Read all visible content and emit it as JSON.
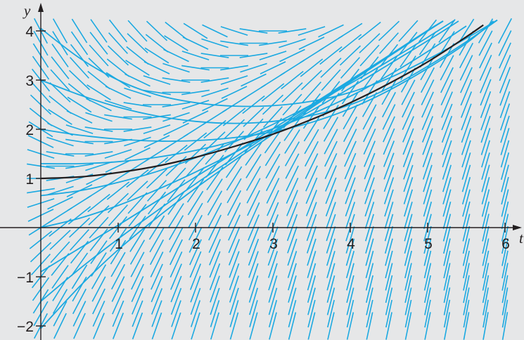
{
  "chart_data": {
    "type": "line",
    "title": "",
    "xlabel": "t",
    "ylabel": "y",
    "xlim": [
      -0.5,
      6.2
    ],
    "ylim": [
      -2.2,
      4.3
    ],
    "x_ticks": [
      1,
      2,
      3,
      4,
      5,
      6
    ],
    "y_ticks": [
      -2,
      -1,
      1,
      2,
      3,
      4
    ],
    "x_tick_labels": [
      "1",
      "2",
      "3",
      "4",
      "5",
      "6"
    ],
    "y_tick_labels": [
      "−2",
      "−1",
      "1",
      "2",
      "3",
      "4"
    ],
    "grid": false,
    "legend": "none",
    "background_color": "#e6e7e8",
    "direction_field": {
      "slope_function": "t - y + 1",
      "segment_color": "#1ba9e1",
      "t_values": [
        0,
        0.25,
        0.5,
        0.75,
        1.0,
        1.25,
        1.5,
        1.75,
        2.0,
        2.25,
        2.5,
        2.75,
        3.0,
        3.25,
        3.5,
        3.75,
        4.0,
        4.25,
        4.5,
        4.75,
        5.0,
        5.25,
        5.5,
        5.75,
        6.0
      ],
      "y_values": [
        -2.0,
        -1.75,
        -1.5,
        -1.25,
        -1.0,
        -0.75,
        -0.5,
        -0.25,
        0,
        0.25,
        0.5,
        0.75,
        1.0,
        1.25,
        1.5,
        1.75,
        2.0,
        2.25,
        2.5,
        2.75,
        3.0,
        3.25,
        3.5,
        3.75,
        4.0
      ]
    },
    "series": [
      {
        "role": "solution",
        "color": "#1ba9e1",
        "points": [
          [
            0,
            4.05
          ],
          [
            0.5,
            3.45
          ],
          [
            1,
            3.0
          ],
          [
            1.5,
            2.7
          ],
          [
            2,
            2.54
          ],
          [
            2.5,
            2.47
          ],
          [
            3,
            2.48
          ],
          [
            3.5,
            2.57
          ],
          [
            4,
            2.75
          ],
          [
            4.5,
            3.04
          ],
          [
            5,
            3.42
          ],
          [
            5.5,
            3.85
          ],
          [
            5.9,
            4.22
          ]
        ]
      },
      {
        "role": "solution",
        "color": "#1ba9e1",
        "points": [
          [
            0,
            3.0
          ],
          [
            0.5,
            2.7
          ],
          [
            1,
            2.45
          ],
          [
            1.5,
            2.27
          ],
          [
            2,
            2.16
          ],
          [
            2.5,
            2.12
          ],
          [
            3,
            2.16
          ],
          [
            3.5,
            2.28
          ],
          [
            4,
            2.5
          ],
          [
            4.5,
            2.84
          ],
          [
            5,
            3.28
          ],
          [
            5.5,
            3.78
          ],
          [
            5.9,
            4.22
          ]
        ]
      },
      {
        "role": "solution",
        "color": "#1ba9e1",
        "points": [
          [
            0,
            2.0
          ],
          [
            0.5,
            1.88
          ],
          [
            1,
            1.8
          ],
          [
            1.5,
            1.76
          ],
          [
            2,
            1.77
          ],
          [
            2.5,
            1.83
          ],
          [
            3,
            1.95
          ],
          [
            3.5,
            2.14
          ],
          [
            4,
            2.42
          ],
          [
            4.5,
            2.79
          ],
          [
            5,
            3.24
          ],
          [
            5.5,
            3.75
          ],
          [
            5.85,
            4.2
          ]
        ]
      },
      {
        "role": "solution",
        "color": "#1ba9e1",
        "points": [
          [
            0,
            1.3
          ],
          [
            0.5,
            1.3
          ],
          [
            1,
            1.34
          ],
          [
            1.5,
            1.43
          ],
          [
            2,
            1.57
          ],
          [
            2.5,
            1.76
          ],
          [
            3,
            2.01
          ],
          [
            3.5,
            2.31
          ],
          [
            4,
            2.67
          ],
          [
            4.5,
            3.1
          ],
          [
            5,
            3.58
          ],
          [
            5.5,
            4.1
          ]
        ]
      },
      {
        "role": "solution",
        "color": "#1ba9e1",
        "points": [
          [
            0,
            0.65
          ],
          [
            0.5,
            0.75
          ],
          [
            1,
            0.92
          ],
          [
            1.5,
            1.14
          ],
          [
            2,
            1.42
          ],
          [
            2.5,
            1.74
          ],
          [
            3,
            2.1
          ],
          [
            3.5,
            2.5
          ],
          [
            4,
            2.93
          ],
          [
            4.5,
            3.39
          ],
          [
            5,
            3.87
          ],
          [
            5.35,
            4.22
          ]
        ]
      },
      {
        "role": "solution",
        "color": "#1ba9e1",
        "points": [
          [
            0,
            0.0
          ],
          [
            0.5,
            0.19
          ],
          [
            1,
            0.45
          ],
          [
            1.5,
            0.77
          ],
          [
            2,
            1.13
          ],
          [
            2.5,
            1.52
          ],
          [
            3,
            1.94
          ],
          [
            3.5,
            2.38
          ],
          [
            4,
            2.84
          ],
          [
            4.5,
            3.32
          ],
          [
            5,
            3.8
          ],
          [
            5.4,
            4.2
          ]
        ]
      },
      {
        "role": "solution",
        "color": "#1ba9e1",
        "points": [
          [
            0,
            -0.9
          ],
          [
            0.5,
            -0.42
          ],
          [
            1,
            0.05
          ],
          [
            1.5,
            0.54
          ],
          [
            2,
            1.03
          ],
          [
            2.5,
            1.52
          ],
          [
            3,
            2.01
          ],
          [
            3.5,
            2.5
          ],
          [
            4,
            3.0
          ],
          [
            4.5,
            3.5
          ],
          [
            5,
            4.0
          ],
          [
            5.2,
            4.2
          ]
        ]
      },
      {
        "role": "solution",
        "color": "#1ba9e1",
        "points": [
          [
            0,
            -1.5
          ],
          [
            0.5,
            -0.84
          ],
          [
            1,
            -0.23
          ],
          [
            1.5,
            0.34
          ],
          [
            2,
            0.89
          ],
          [
            2.5,
            1.42
          ],
          [
            3,
            1.95
          ],
          [
            3.5,
            2.47
          ],
          [
            4,
            2.98
          ],
          [
            4.5,
            3.5
          ],
          [
            5,
            4.01
          ],
          [
            5.2,
            4.2
          ]
        ]
      },
      {
        "role": "solution",
        "color": "#1ba9e1",
        "points": [
          [
            0,
            -2.05
          ],
          [
            0.5,
            -1.2
          ],
          [
            1,
            -0.45
          ],
          [
            1.5,
            0.2
          ],
          [
            2,
            0.8
          ],
          [
            2.5,
            1.36
          ],
          [
            3,
            1.9
          ],
          [
            3.5,
            2.44
          ],
          [
            4,
            2.96
          ],
          [
            4.5,
            3.48
          ],
          [
            5,
            4.0
          ],
          [
            5.2,
            4.2
          ]
        ]
      },
      {
        "role": "highlighted solution",
        "color": "#231f20",
        "points": [
          [
            0,
            1.0
          ],
          [
            0.5,
            1.03
          ],
          [
            1,
            1.12
          ],
          [
            1.5,
            1.25
          ],
          [
            2,
            1.43
          ],
          [
            2.5,
            1.65
          ],
          [
            3,
            1.9
          ],
          [
            3.5,
            2.2
          ],
          [
            4,
            2.54
          ],
          [
            4.5,
            2.93
          ],
          [
            5,
            3.37
          ],
          [
            5.5,
            3.88
          ],
          [
            5.72,
            4.12
          ]
        ]
      }
    ]
  }
}
